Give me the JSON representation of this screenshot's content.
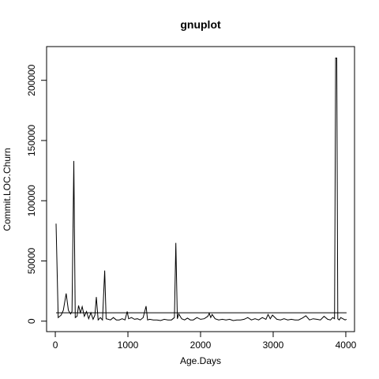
{
  "chart_data": {
    "type": "line",
    "title": "gnuplot",
    "xlabel": "Age.Days",
    "ylabel": "Commit.LOC.Churn",
    "xlim": [
      -120,
      4120
    ],
    "ylim": [
      -8700,
      228000
    ],
    "x_ticks": [
      0,
      1000,
      2000,
      3000,
      4000
    ],
    "y_ticks": [
      0,
      50000,
      100000,
      150000,
      200000
    ],
    "x_tick_labels": [
      "0",
      "1000",
      "2000",
      "3000",
      "4000"
    ],
    "y_tick_labels": [
      "0",
      "50000",
      "100000",
      "150000",
      "200000"
    ],
    "grid": false,
    "legend": "none",
    "line_color": "#000000",
    "series": [
      {
        "values_x": [
          10,
          40,
          80,
          110,
          150,
          180,
          210,
          230,
          255,
          275,
          300,
          320,
          345,
          370,
          400,
          430,
          460,
          490,
          520,
          545,
          565,
          590,
          620,
          650,
          680,
          700,
          730,
          760,
          800,
          840,
          880,
          920,
          960,
          990,
          1010,
          1050,
          1090,
          1130,
          1170,
          1210,
          1250,
          1270,
          1300,
          1350,
          1400,
          1450,
          1500,
          1550,
          1600,
          1640,
          1660,
          1680,
          1700,
          1740,
          1780,
          1820,
          1860,
          1900,
          1950,
          2000,
          2050,
          2100,
          2120,
          2140,
          2160,
          2200,
          2250,
          2300,
          2350,
          2400,
          2450,
          2500,
          2550,
          2600,
          2650,
          2700,
          2750,
          2800,
          2850,
          2900,
          2930,
          2960,
          2990,
          3050,
          3100,
          3150,
          3200,
          3250,
          3300,
          3350,
          3400,
          3450,
          3500,
          3550,
          3600,
          3650,
          3700,
          3750,
          3790,
          3820,
          3845,
          3860,
          3875,
          3890,
          3910,
          3930,
          3960,
          3990,
          4010
        ],
        "values_y": [
          81000,
          3000,
          5000,
          9000,
          23000,
          9000,
          6000,
          8000,
          133000,
          3000,
          4000,
          13000,
          7000,
          12000,
          4000,
          8000,
          2000,
          7000,
          1500,
          5000,
          20000,
          1000,
          3000,
          1000,
          42000,
          2000,
          1500,
          1000,
          3000,
          1000,
          1000,
          2000,
          1000,
          8000,
          2000,
          3000,
          1500,
          2000,
          1000,
          3000,
          12500,
          1000,
          1500,
          1000,
          1000,
          500,
          1500,
          1000,
          1000,
          3000,
          65000,
          2000,
          6000,
          2000,
          1000,
          2500,
          1000,
          1000,
          3000,
          1500,
          2000,
          4000,
          6500,
          3000,
          5500,
          2000,
          1000,
          1500,
          1000,
          1500,
          500,
          1000,
          1000,
          1500,
          3000,
          1000,
          2000,
          1000,
          3000,
          1500,
          5500,
          2000,
          5000,
          1500,
          1000,
          2000,
          1000,
          1500,
          1000,
          1000,
          2500,
          4500,
          1000,
          2000,
          1500,
          1000,
          4000,
          1500,
          1000,
          3000,
          2000,
          218500,
          218500,
          2000,
          1000,
          3000,
          2000,
          1000,
          1500
        ]
      },
      {
        "values_x": [
          10,
          4010
        ],
        "values_y": [
          7000,
          7000
        ]
      }
    ]
  }
}
